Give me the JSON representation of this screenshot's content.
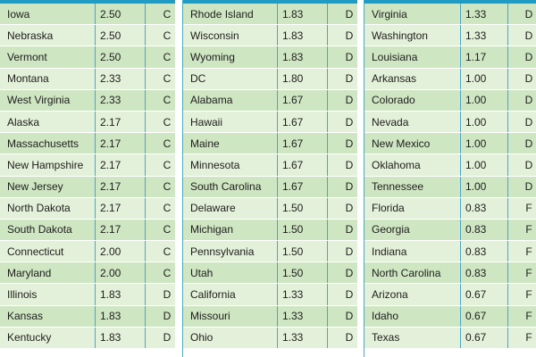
{
  "columns": [
    {
      "rows": [
        {
          "state": "Iowa",
          "score": "2.50",
          "grade": "C"
        },
        {
          "state": "Nebraska",
          "score": "2.50",
          "grade": "C"
        },
        {
          "state": "Vermont",
          "score": "2.50",
          "grade": "C"
        },
        {
          "state": "Montana",
          "score": "2.33",
          "grade": "C"
        },
        {
          "state": "West Virginia",
          "score": "2.33",
          "grade": "C"
        },
        {
          "state": "Alaska",
          "score": "2.17",
          "grade": "C"
        },
        {
          "state": "Massachusetts",
          "score": "2.17",
          "grade": "C"
        },
        {
          "state": "New Hampshire",
          "score": "2.17",
          "grade": "C"
        },
        {
          "state": "New Jersey",
          "score": "2.17",
          "grade": "C"
        },
        {
          "state": "North Dakota",
          "score": "2.17",
          "grade": "C"
        },
        {
          "state": "South Dakota",
          "score": "2.17",
          "grade": "C"
        },
        {
          "state": "Connecticut",
          "score": "2.00",
          "grade": "C"
        },
        {
          "state": "Maryland",
          "score": "2.00",
          "grade": "C"
        },
        {
          "state": "Illinois",
          "score": "1.83",
          "grade": "D"
        },
        {
          "state": "Kansas",
          "score": "1.83",
          "grade": "D"
        },
        {
          "state": "Kentucky",
          "score": "1.83",
          "grade": "D"
        }
      ]
    },
    {
      "rows": [
        {
          "state": "Rhode Island",
          "score": "1.83",
          "grade": "D"
        },
        {
          "state": "Wisconsin",
          "score": "1.83",
          "grade": "D"
        },
        {
          "state": "Wyoming",
          "score": "1.83",
          "grade": "D"
        },
        {
          "state": "DC",
          "score": "1.80",
          "grade": "D"
        },
        {
          "state": "Alabama",
          "score": "1.67",
          "grade": "D"
        },
        {
          "state": "Hawaii",
          "score": "1.67",
          "grade": "D"
        },
        {
          "state": "Maine",
          "score": "1.67",
          "grade": "D"
        },
        {
          "state": "Minnesota",
          "score": "1.67",
          "grade": "D"
        },
        {
          "state": "South Carolina",
          "score": "1.67",
          "grade": "D"
        },
        {
          "state": "Delaware",
          "score": "1.50",
          "grade": "D"
        },
        {
          "state": "Michigan",
          "score": "1.50",
          "grade": "D"
        },
        {
          "state": "Pennsylvania",
          "score": "1.50",
          "grade": "D"
        },
        {
          "state": "Utah",
          "score": "1.50",
          "grade": "D"
        },
        {
          "state": "California",
          "score": "1.33",
          "grade": "D"
        },
        {
          "state": "Missouri",
          "score": "1.33",
          "grade": "D"
        },
        {
          "state": "Ohio",
          "score": "1.33",
          "grade": "D"
        }
      ]
    },
    {
      "rows": [
        {
          "state": "Virginia",
          "score": "1.33",
          "grade": "D"
        },
        {
          "state": "Washington",
          "score": "1.33",
          "grade": "D"
        },
        {
          "state": "Louisiana",
          "score": "1.17",
          "grade": "D"
        },
        {
          "state": "Arkansas",
          "score": "1.00",
          "grade": "D"
        },
        {
          "state": "Colorado",
          "score": "1.00",
          "grade": "D"
        },
        {
          "state": "Nevada",
          "score": "1.00",
          "grade": "D"
        },
        {
          "state": "New Mexico",
          "score": "1.00",
          "grade": "D"
        },
        {
          "state": "Oklahoma",
          "score": "1.00",
          "grade": "D"
        },
        {
          "state": "Tennessee",
          "score": "1.00",
          "grade": "D"
        },
        {
          "state": "Florida",
          "score": "0.83",
          "grade": "F"
        },
        {
          "state": "Georgia",
          "score": "0.83",
          "grade": "F"
        },
        {
          "state": "Indiana",
          "score": "0.83",
          "grade": "F"
        },
        {
          "state": "North Carolina",
          "score": "0.83",
          "grade": "F"
        },
        {
          "state": "Arizona",
          "score": "0.67",
          "grade": "F"
        },
        {
          "state": "Idaho",
          "score": "0.67",
          "grade": "F"
        },
        {
          "state": "Texas",
          "score": "0.67",
          "grade": "F"
        }
      ]
    }
  ]
}
